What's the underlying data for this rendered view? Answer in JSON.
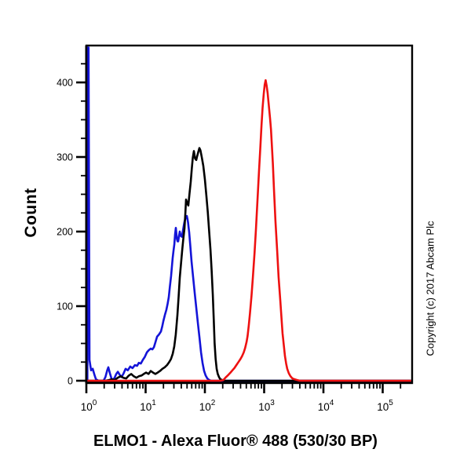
{
  "figure": {
    "caption": "ELMO1 - Alexa Fluor® 488 (530/30 BP)",
    "ylabel": "Count",
    "copyright": "Copyright (c) 2017 Abcam Plc"
  },
  "chart_data": {
    "type": "line",
    "title": "ELMO1 - Alexa Fluor® 488 (530/30 BP)",
    "xlabel": "ELMO1 - Alexa Fluor® 488 (530/30 BP)",
    "ylabel": "Count",
    "x_scale": "log10",
    "x_range": [
      1,
      316000
    ],
    "ylim": [
      0,
      447
    ],
    "yticks_major": [
      0,
      100,
      200,
      300,
      400
    ],
    "ytick_minor_step": 25,
    "xtick_exponents": [
      0,
      1,
      2,
      3,
      4,
      5
    ],
    "grid": false,
    "legend": "none",
    "axis_color": "#000000",
    "series": [
      {
        "name": "blue-curve",
        "color": "#1414d8",
        "points": [
          [
            1.04,
            0
          ],
          [
            1.05,
            447
          ],
          [
            1.09,
            447
          ],
          [
            1.13,
            28
          ],
          [
            1.2,
            14
          ],
          [
            1.28,
            16
          ],
          [
            1.37,
            8
          ],
          [
            1.45,
            2
          ],
          [
            1.6,
            0
          ],
          [
            1.95,
            0
          ],
          [
            2.1,
            5
          ],
          [
            2.25,
            14
          ],
          [
            2.35,
            18
          ],
          [
            2.5,
            10
          ],
          [
            2.65,
            3
          ],
          [
            2.8,
            1
          ],
          [
            3.0,
            4
          ],
          [
            3.2,
            9
          ],
          [
            3.4,
            12
          ],
          [
            3.65,
            8
          ],
          [
            3.9,
            5
          ],
          [
            4.2,
            9
          ],
          [
            4.6,
            16
          ],
          [
            5.0,
            14
          ],
          [
            5.5,
            19
          ],
          [
            6.0,
            17
          ],
          [
            6.6,
            21
          ],
          [
            7.2,
            20
          ],
          [
            7.7,
            24
          ],
          [
            8.3,
            23
          ],
          [
            9.0,
            28
          ],
          [
            9.7,
            32
          ],
          [
            10.5,
            38
          ],
          [
            11.3,
            41
          ],
          [
            12.2,
            43
          ],
          [
            13.0,
            42
          ],
          [
            13.8,
            45
          ],
          [
            14.7,
            52
          ],
          [
            15.6,
            59
          ],
          [
            16.8,
            62
          ],
          [
            18.1,
            66
          ],
          [
            19.0,
            72
          ],
          [
            19.9,
            80
          ],
          [
            21.1,
            88
          ],
          [
            22.4,
            95
          ],
          [
            23.5,
            103
          ],
          [
            24.6,
            112
          ],
          [
            25.7,
            126
          ],
          [
            26.9,
            140
          ],
          [
            27.7,
            152
          ],
          [
            28.6,
            165
          ],
          [
            29.5,
            174
          ],
          [
            30.5,
            183
          ],
          [
            31.4,
            196
          ],
          [
            32.4,
            205
          ],
          [
            33.1,
            197
          ],
          [
            33.8,
            190
          ],
          [
            34.6,
            187
          ],
          [
            35.5,
            187
          ],
          [
            36.6,
            194
          ],
          [
            37.7,
            200
          ],
          [
            38.6,
            196
          ],
          [
            39.5,
            194
          ],
          [
            40.9,
            193
          ],
          [
            42.6,
            201
          ],
          [
            44.0,
            208
          ],
          [
            45.3,
            213
          ],
          [
            46.7,
            217
          ],
          [
            48.1,
            220
          ],
          [
            49.6,
            221
          ],
          [
            50.8,
            217
          ],
          [
            52.0,
            212
          ],
          [
            53.1,
            206
          ],
          [
            54.3,
            199
          ],
          [
            56.8,
            180
          ],
          [
            59.5,
            160
          ],
          [
            63.2,
            139
          ],
          [
            67.3,
            118
          ],
          [
            71.5,
            98
          ],
          [
            76.0,
            78
          ],
          [
            81.0,
            58
          ],
          [
            86.0,
            38
          ],
          [
            91.3,
            24
          ],
          [
            97.0,
            13
          ],
          [
            103,
            7
          ],
          [
            110,
            3
          ],
          [
            118,
            1
          ],
          [
            126,
            0
          ],
          [
            310000,
            0
          ]
        ]
      },
      {
        "name": "black-curve",
        "color": "#000000",
        "points": [
          [
            1.0,
            0
          ],
          [
            2.1,
            0
          ],
          [
            2.4,
            1
          ],
          [
            2.7,
            2
          ],
          [
            3.0,
            1
          ],
          [
            3.4,
            4
          ],
          [
            3.8,
            6
          ],
          [
            4.2,
            4
          ],
          [
            4.7,
            3
          ],
          [
            5.2,
            7
          ],
          [
            5.7,
            9
          ],
          [
            6.3,
            6
          ],
          [
            7.0,
            4
          ],
          [
            7.7,
            6
          ],
          [
            8.5,
            7
          ],
          [
            9.3,
            9
          ],
          [
            10.2,
            11
          ],
          [
            11.2,
            9
          ],
          [
            12.2,
            13
          ],
          [
            13.3,
            11
          ],
          [
            14.6,
            9
          ],
          [
            16.0,
            11
          ],
          [
            17.5,
            13
          ],
          [
            19.2,
            16
          ],
          [
            21.0,
            18
          ],
          [
            23.0,
            21
          ],
          [
            25.0,
            25
          ],
          [
            26.8,
            29
          ],
          [
            28.6,
            36
          ],
          [
            30.4,
            46
          ],
          [
            32.3,
            62
          ],
          [
            34.4,
            88
          ],
          [
            36.0,
            112
          ],
          [
            37.7,
            138
          ],
          [
            39.4,
            156
          ],
          [
            41.3,
            174
          ],
          [
            43.2,
            190
          ],
          [
            45.3,
            204
          ],
          [
            46.9,
            226
          ],
          [
            48.1,
            243
          ],
          [
            50.3,
            238
          ],
          [
            52.6,
            235
          ],
          [
            55.0,
            251
          ],
          [
            57.7,
            267
          ],
          [
            60.0,
            284
          ],
          [
            62.5,
            299
          ],
          [
            65.3,
            308
          ],
          [
            68.4,
            298
          ],
          [
            71.6,
            296
          ],
          [
            74.0,
            301
          ],
          [
            77.0,
            306
          ],
          [
            80.8,
            312
          ],
          [
            84.0,
            309
          ],
          [
            88.5,
            300
          ],
          [
            94.0,
            288
          ],
          [
            100,
            270
          ],
          [
            106,
            248
          ],
          [
            112,
            226
          ],
          [
            118,
            201
          ],
          [
            124,
            176
          ],
          [
            130,
            148
          ],
          [
            136,
            115
          ],
          [
            141,
            82
          ],
          [
            146,
            50
          ],
          [
            152,
            29
          ],
          [
            158,
            16
          ],
          [
            165,
            9
          ],
          [
            173,
            5
          ],
          [
            182,
            2
          ],
          [
            196,
            1
          ],
          [
            212,
            0
          ],
          [
            310000,
            0
          ]
        ]
      },
      {
        "name": "red-curve",
        "color": "#ee1111",
        "points": [
          [
            1.0,
            0
          ],
          [
            180,
            0
          ],
          [
            205,
            1
          ],
          [
            228,
            5
          ],
          [
            250,
            8
          ],
          [
            270,
            11
          ],
          [
            292,
            14
          ],
          [
            315,
            17
          ],
          [
            340,
            21
          ],
          [
            368,
            25
          ],
          [
            398,
            29
          ],
          [
            425,
            33
          ],
          [
            452,
            38
          ],
          [
            478,
            44
          ],
          [
            505,
            52
          ],
          [
            525,
            60
          ],
          [
            550,
            74
          ],
          [
            575,
            90
          ],
          [
            612,
            114
          ],
          [
            645,
            138
          ],
          [
            690,
            172
          ],
          [
            728,
            204
          ],
          [
            772,
            242
          ],
          [
            820,
            282
          ],
          [
            862,
            312
          ],
          [
            902,
            342
          ],
          [
            942,
            366
          ],
          [
            985,
            385
          ],
          [
            1022,
            397
          ],
          [
            1060,
            403
          ],
          [
            1100,
            396
          ],
          [
            1142,
            386
          ],
          [
            1184,
            374
          ],
          [
            1258,
            352
          ],
          [
            1302,
            337
          ],
          [
            1344,
            318
          ],
          [
            1402,
            291
          ],
          [
            1466,
            257
          ],
          [
            1552,
            214
          ],
          [
            1658,
            174
          ],
          [
            1752,
            139
          ],
          [
            1872,
            107
          ],
          [
            1952,
            87
          ],
          [
            2044,
            64
          ],
          [
            2152,
            47
          ],
          [
            2246,
            33
          ],
          [
            2352,
            23
          ],
          [
            2454,
            16
          ],
          [
            2602,
            10
          ],
          [
            2782,
            6
          ],
          [
            3002,
            3
          ],
          [
            3252,
            2
          ],
          [
            3602,
            1
          ],
          [
            4002,
            0
          ],
          [
            310000,
            0
          ]
        ]
      }
    ]
  }
}
